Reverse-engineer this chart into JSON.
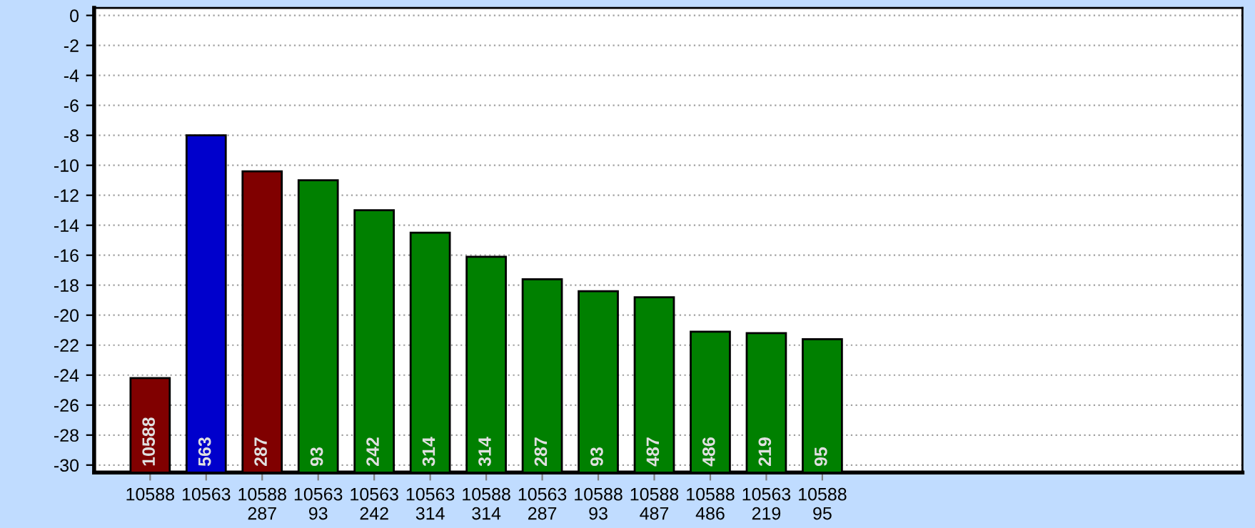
{
  "chart_data": {
    "type": "bar",
    "categories": [
      "10588",
      "10563",
      "10588\n287",
      "10563\n93",
      "10563\n242",
      "10563\n314",
      "10588\n314",
      "10563\n287",
      "10588\n93",
      "10588\n487",
      "10588\n486",
      "10563\n219",
      "10588\n95"
    ],
    "values": [
      6.3,
      22.5,
      20.1,
      19.5,
      17.5,
      16.0,
      14.4,
      12.9,
      12.1,
      11.7,
      9.4,
      9.3,
      8.9
    ],
    "base": [
      -30.5,
      -30.5,
      -30.5,
      -30.5,
      -30.5,
      -30.5,
      -30.5,
      -30.5,
      -30.5,
      -30.5,
      -30.5,
      -30.5,
      -30.5
    ],
    "colors": [
      "#800000",
      "#0000cc",
      "#800000",
      "#008000",
      "#008000",
      "#008000",
      "#008000",
      "#008000",
      "#008000",
      "#008000",
      "#008000",
      "#008000",
      "#008000"
    ],
    "annotations": [
      "10588",
      "563",
      "287",
      "93",
      "242",
      "314",
      "314",
      "287",
      "93",
      "487",
      "486",
      "219",
      "95"
    ],
    "ylim": [
      -30.5,
      0.5
    ],
    "yticks": [
      0,
      -2,
      -4,
      -6,
      -8,
      -10,
      -12,
      -14,
      -16,
      -18,
      -20,
      -22,
      -24,
      -26,
      -28,
      -30
    ],
    "grid": "y",
    "legend": false
  }
}
